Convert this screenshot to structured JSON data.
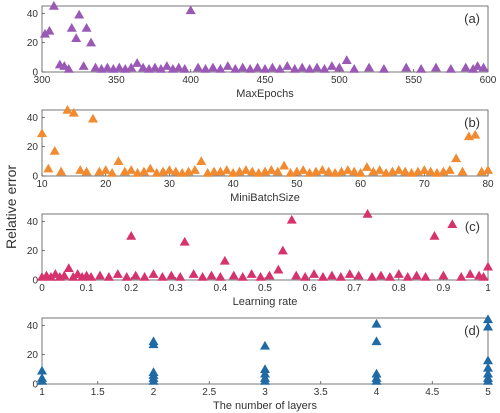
{
  "chart_data": {
    "type": "scatter",
    "ylabel": "Relative error",
    "panels": [
      {
        "panel_label": "(a)",
        "xlabel": "MaxEpochs",
        "color": "#9b59b6",
        "xlim": [
          300,
          600
        ],
        "ylim": [
          0,
          45
        ],
        "xticks": [
          300,
          350,
          400,
          450,
          500,
          550,
          600
        ],
        "yticks": [
          0,
          20,
          40
        ],
        "points": [
          [
            302,
            25
          ],
          [
            305,
            27
          ],
          [
            308,
            44
          ],
          [
            312,
            4
          ],
          [
            315,
            3
          ],
          [
            318,
            1
          ],
          [
            320,
            29
          ],
          [
            323,
            22
          ],
          [
            325,
            38
          ],
          [
            328,
            3
          ],
          [
            330,
            29
          ],
          [
            333,
            19
          ],
          [
            336,
            2
          ],
          [
            340,
            1
          ],
          [
            344,
            2
          ],
          [
            348,
            1
          ],
          [
            352,
            2
          ],
          [
            356,
            1
          ],
          [
            360,
            2
          ],
          [
            364,
            5
          ],
          [
            368,
            2
          ],
          [
            372,
            1
          ],
          [
            376,
            2
          ],
          [
            380,
            1
          ],
          [
            384,
            3
          ],
          [
            388,
            1
          ],
          [
            392,
            2
          ],
          [
            396,
            1
          ],
          [
            400,
            41
          ],
          [
            405,
            2
          ],
          [
            410,
            1
          ],
          [
            415,
            2
          ],
          [
            420,
            1
          ],
          [
            425,
            3
          ],
          [
            430,
            1
          ],
          [
            435,
            2
          ],
          [
            440,
            1
          ],
          [
            445,
            2
          ],
          [
            450,
            1
          ],
          [
            455,
            2
          ],
          [
            460,
            1
          ],
          [
            465,
            3
          ],
          [
            470,
            1
          ],
          [
            475,
            2
          ],
          [
            480,
            1
          ],
          [
            485,
            2
          ],
          [
            490,
            1
          ],
          [
            495,
            3
          ],
          [
            500,
            2
          ],
          [
            505,
            7
          ],
          [
            510,
            1
          ],
          [
            520,
            2
          ],
          [
            530,
            1
          ],
          [
            545,
            2
          ],
          [
            555,
            1
          ],
          [
            565,
            2
          ],
          [
            575,
            1
          ],
          [
            585,
            2
          ],
          [
            590,
            1
          ],
          [
            593,
            3
          ],
          [
            597,
            2
          ]
        ]
      },
      {
        "panel_label": "(b)",
        "xlabel": "MiniBatchSize",
        "color": "#f28a30",
        "xlim": [
          10,
          80
        ],
        "ylim": [
          0,
          45
        ],
        "xticks": [
          10,
          20,
          30,
          40,
          50,
          60,
          70,
          80
        ],
        "yticks": [
          0,
          20,
          40
        ],
        "points": [
          [
            10,
            28
          ],
          [
            11,
            4
          ],
          [
            12,
            16
          ],
          [
            13,
            2
          ],
          [
            14,
            44
          ],
          [
            15,
            42
          ],
          [
            16,
            3
          ],
          [
            17,
            2
          ],
          [
            18,
            38
          ],
          [
            19,
            2
          ],
          [
            20,
            3
          ],
          [
            21,
            1
          ],
          [
            22,
            9
          ],
          [
            23,
            2
          ],
          [
            24,
            3
          ],
          [
            25,
            1
          ],
          [
            26,
            2
          ],
          [
            27,
            4
          ],
          [
            28,
            1
          ],
          [
            29,
            2
          ],
          [
            30,
            3
          ],
          [
            31,
            2
          ],
          [
            32,
            1
          ],
          [
            33,
            2
          ],
          [
            34,
            3
          ],
          [
            35,
            9
          ],
          [
            36,
            1
          ],
          [
            37,
            2
          ],
          [
            38,
            2
          ],
          [
            39,
            3
          ],
          [
            40,
            1
          ],
          [
            41,
            2
          ],
          [
            42,
            3
          ],
          [
            43,
            2
          ],
          [
            44,
            1
          ],
          [
            45,
            2
          ],
          [
            46,
            3
          ],
          [
            47,
            2
          ],
          [
            48,
            6
          ],
          [
            49,
            1
          ],
          [
            50,
            2
          ],
          [
            51,
            3
          ],
          [
            52,
            1
          ],
          [
            53,
            2
          ],
          [
            54,
            3
          ],
          [
            55,
            2
          ],
          [
            56,
            1
          ],
          [
            57,
            2
          ],
          [
            58,
            3
          ],
          [
            59,
            2
          ],
          [
            60,
            1
          ],
          [
            61,
            5
          ],
          [
            62,
            2
          ],
          [
            63,
            3
          ],
          [
            64,
            1
          ],
          [
            65,
            2
          ],
          [
            66,
            3
          ],
          [
            67,
            2
          ],
          [
            68,
            1
          ],
          [
            69,
            2
          ],
          [
            70,
            3
          ],
          [
            71,
            2
          ],
          [
            72,
            1
          ],
          [
            73,
            2
          ],
          [
            74,
            3
          ],
          [
            75,
            11
          ],
          [
            76,
            2
          ],
          [
            77,
            26
          ],
          [
            78,
            27
          ],
          [
            79,
            2
          ],
          [
            80,
            3
          ]
        ]
      },
      {
        "panel_label": "(c)",
        "xlabel": "Learning rate",
        "color": "#d6336c",
        "xlim": [
          0,
          1
        ],
        "ylim": [
          0,
          45
        ],
        "xticks": [
          0,
          0.1,
          0.2,
          0.3,
          0.4,
          0.5,
          0.6,
          0.7,
          0.8,
          0.9,
          1
        ],
        "yticks": [
          0,
          20,
          40
        ],
        "points": [
          [
            0.0,
            1
          ],
          [
            0.01,
            2
          ],
          [
            0.02,
            1
          ],
          [
            0.03,
            3
          ],
          [
            0.04,
            1
          ],
          [
            0.05,
            2
          ],
          [
            0.06,
            7
          ],
          [
            0.07,
            1
          ],
          [
            0.08,
            3
          ],
          [
            0.09,
            1
          ],
          [
            0.1,
            2
          ],
          [
            0.11,
            1
          ],
          [
            0.13,
            2
          ],
          [
            0.15,
            1
          ],
          [
            0.17,
            3
          ],
          [
            0.19,
            1
          ],
          [
            0.2,
            29
          ],
          [
            0.21,
            2
          ],
          [
            0.23,
            1
          ],
          [
            0.25,
            3
          ],
          [
            0.27,
            1
          ],
          [
            0.29,
            2
          ],
          [
            0.31,
            1
          ],
          [
            0.32,
            25
          ],
          [
            0.34,
            3
          ],
          [
            0.36,
            1
          ],
          [
            0.38,
            2
          ],
          [
            0.4,
            1
          ],
          [
            0.41,
            12
          ],
          [
            0.43,
            2
          ],
          [
            0.45,
            1
          ],
          [
            0.47,
            3
          ],
          [
            0.49,
            1
          ],
          [
            0.51,
            2
          ],
          [
            0.53,
            6
          ],
          [
            0.54,
            19
          ],
          [
            0.56,
            40
          ],
          [
            0.57,
            2
          ],
          [
            0.59,
            1
          ],
          [
            0.61,
            3
          ],
          [
            0.63,
            1
          ],
          [
            0.65,
            2
          ],
          [
            0.67,
            1
          ],
          [
            0.69,
            3
          ],
          [
            0.71,
            2
          ],
          [
            0.73,
            44
          ],
          [
            0.74,
            1
          ],
          [
            0.76,
            2
          ],
          [
            0.78,
            1
          ],
          [
            0.8,
            3
          ],
          [
            0.82,
            1
          ],
          [
            0.84,
            2
          ],
          [
            0.86,
            1
          ],
          [
            0.88,
            29
          ],
          [
            0.9,
            2
          ],
          [
            0.92,
            37
          ],
          [
            0.94,
            1
          ],
          [
            0.96,
            3
          ],
          [
            0.98,
            2
          ],
          [
            0.99,
            1
          ],
          [
            1.0,
            8
          ]
        ]
      },
      {
        "panel_label": "(d)",
        "xlabel": "The number of layers",
        "color": "#1f6aa5",
        "xlim": [
          1,
          5
        ],
        "ylim": [
          0,
          45
        ],
        "xticks": [
          1,
          1.5,
          2,
          2.5,
          3,
          3.5,
          4,
          4.5,
          5
        ],
        "yticks": [
          0,
          20,
          40
        ],
        "points": [
          [
            1,
            1
          ],
          [
            1,
            3
          ],
          [
            1,
            8
          ],
          [
            2,
            1
          ],
          [
            2,
            3
          ],
          [
            2,
            5
          ],
          [
            2,
            7
          ],
          [
            2,
            26
          ],
          [
            2,
            28
          ],
          [
            3,
            1
          ],
          [
            3,
            3
          ],
          [
            3,
            6
          ],
          [
            3,
            9
          ],
          [
            3,
            25
          ],
          [
            4,
            1
          ],
          [
            4,
            3
          ],
          [
            4,
            6
          ],
          [
            4,
            28
          ],
          [
            4,
            40
          ],
          [
            5,
            1
          ],
          [
            5,
            3
          ],
          [
            5,
            6
          ],
          [
            5,
            10
          ],
          [
            5,
            15
          ],
          [
            5,
            38
          ],
          [
            5,
            43
          ]
        ]
      }
    ]
  }
}
